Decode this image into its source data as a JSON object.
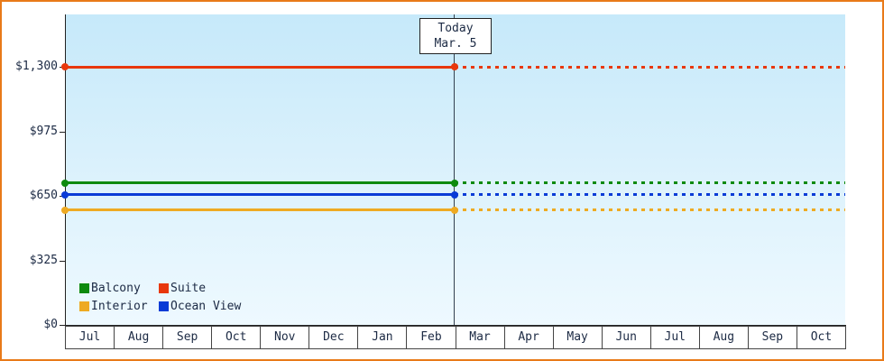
{
  "colors": {
    "frame_border": "#e87a19",
    "plot_bg_top": "#c6e9fa",
    "plot_bg_bottom": "#eef9ff",
    "axis": "#222222"
  },
  "chart_data": {
    "type": "line",
    "title": "",
    "today_label": {
      "line1": "Today",
      "line2": "Mar. 5"
    },
    "x_categories": [
      "Jul",
      "Aug",
      "Sep",
      "Oct",
      "Nov",
      "Dec",
      "Jan",
      "Feb",
      "Mar",
      "Apr",
      "May",
      "Jun",
      "Jul",
      "Aug",
      "Sep",
      "Oct"
    ],
    "y_ticks": [
      "$0",
      "$325",
      "$650",
      "$975",
      "$1,300"
    ],
    "y_tick_values": [
      0,
      325,
      650,
      975,
      1300
    ],
    "ylim": [
      0,
      1300
    ],
    "today_fraction": 0.4994,
    "series": [
      {
        "name": "Suite",
        "color": "#e8380d",
        "value": 1299,
        "style_before_today": "solid",
        "style_after_today": "dotted"
      },
      {
        "name": "Balcony",
        "color": "#0e8a0e",
        "value": 715,
        "style_before_today": "solid",
        "style_after_today": "dotted"
      },
      {
        "name": "Ocean View",
        "color": "#0a3bd6",
        "value": 655,
        "style_before_today": "solid",
        "style_after_today": "dotted"
      },
      {
        "name": "Interior",
        "color": "#eeaa22",
        "value": 578,
        "style_before_today": "solid",
        "style_after_today": "dotted"
      }
    ],
    "legend": [
      {
        "label": "Balcony",
        "color": "#0e8a0e"
      },
      {
        "label": "Suite",
        "color": "#e8380d"
      },
      {
        "label": "Interior",
        "color": "#eeaa22"
      },
      {
        "label": "Ocean View",
        "color": "#0a3bd6"
      }
    ],
    "legend_position": "bottom-left",
    "grid": false
  }
}
